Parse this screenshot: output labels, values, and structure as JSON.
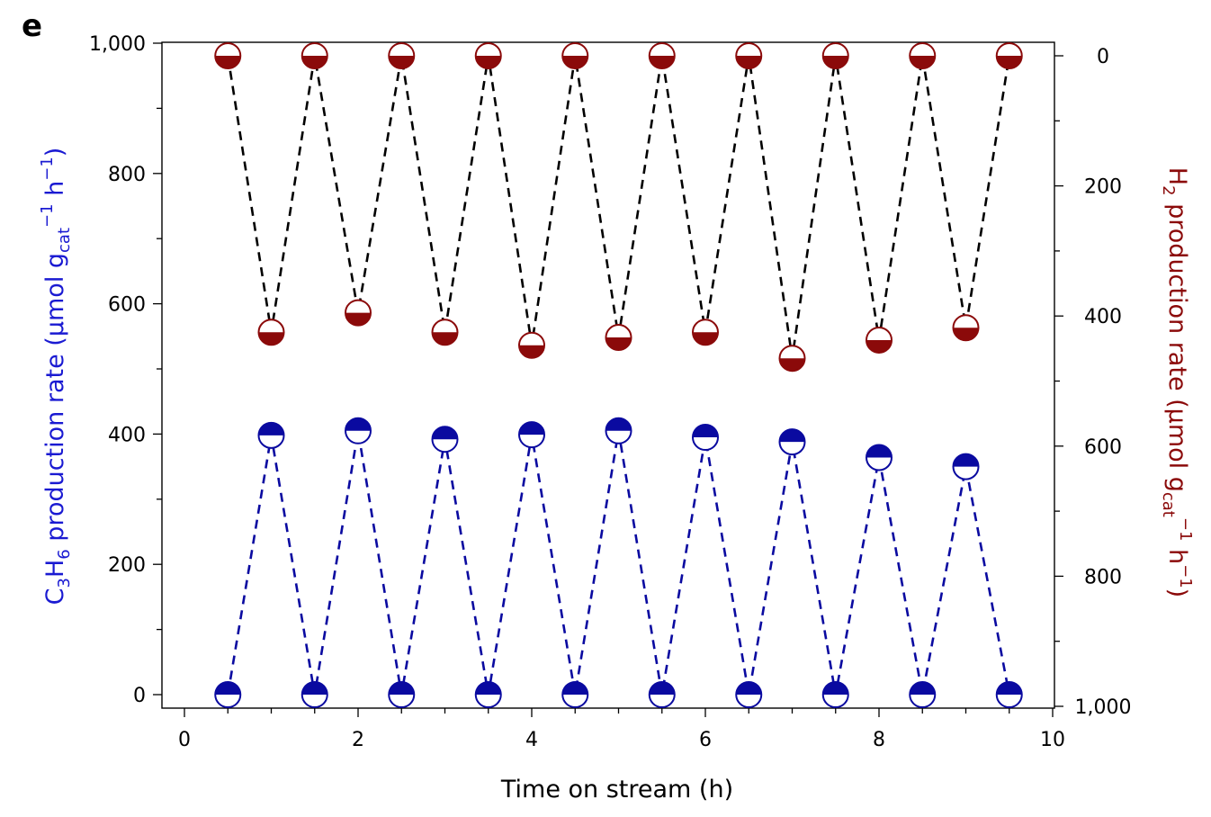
{
  "panel_label": "e",
  "chart_data": {
    "type": "scatter",
    "title": "",
    "xlabel": "Time on stream (h)",
    "ylabel_left": {
      "base": "C",
      "sub1": "3",
      "mid": "H",
      "sub2": "6",
      "rest": " production rate (µmol g",
      "sub3": "cat",
      "sup1": "−1",
      "mid2": " h",
      "sup2": "−1",
      "close": ")"
    },
    "ylabel_right": {
      "base": "H",
      "sub1": "2",
      "rest": " production rate (µmol g",
      "sub3": "cat",
      "sup1": "−1",
      "mid2": " h",
      "sup2": "−1",
      "close": ")"
    },
    "xlim": [
      0,
      10
    ],
    "ylim_left": [
      -20,
      1020
    ],
    "ylim_right_inverted": [
      -20,
      1000
    ],
    "x_ticks": [
      "0",
      "2",
      "4",
      "6",
      "8",
      "10"
    ],
    "y_left_ticks": [
      "0",
      "200",
      "400",
      "600",
      "800",
      "1,000"
    ],
    "y_right_ticks": [
      "0",
      "200",
      "400",
      "600",
      "800",
      "1,000"
    ],
    "grid": false,
    "series": [
      {
        "axis": "left",
        "color": "#0a0aa0",
        "line_style": "dashed",
        "marker": "half-filled-top",
        "x": [
          0.5,
          1.0,
          1.5,
          2.0,
          2.5,
          3.0,
          3.5,
          4.0,
          4.5,
          5.0,
          5.5,
          6.0,
          6.5,
          7.0,
          7.5,
          8.0,
          8.5,
          9.0,
          9.5
        ],
        "y": [
          0,
          398,
          0,
          405,
          0,
          392,
          0,
          399,
          0,
          405,
          0,
          395,
          0,
          388,
          0,
          364,
          0,
          350,
          0
        ]
      },
      {
        "axis": "right",
        "color": "#8b0a0a",
        "line_style": "dashed",
        "marker": "half-filled-bottom",
        "x": [
          0.5,
          1.0,
          1.5,
          2.0,
          2.5,
          3.0,
          3.5,
          4.0,
          4.5,
          5.0,
          5.5,
          6.0,
          6.5,
          7.0,
          7.5,
          8.0,
          8.5,
          9.0,
          9.5
        ],
        "y": [
          0,
          425,
          0,
          395,
          0,
          425,
          0,
          445,
          0,
          433,
          0,
          425,
          0,
          465,
          0,
          437,
          0,
          418,
          0
        ]
      }
    ],
    "connector_color": "#000000"
  }
}
